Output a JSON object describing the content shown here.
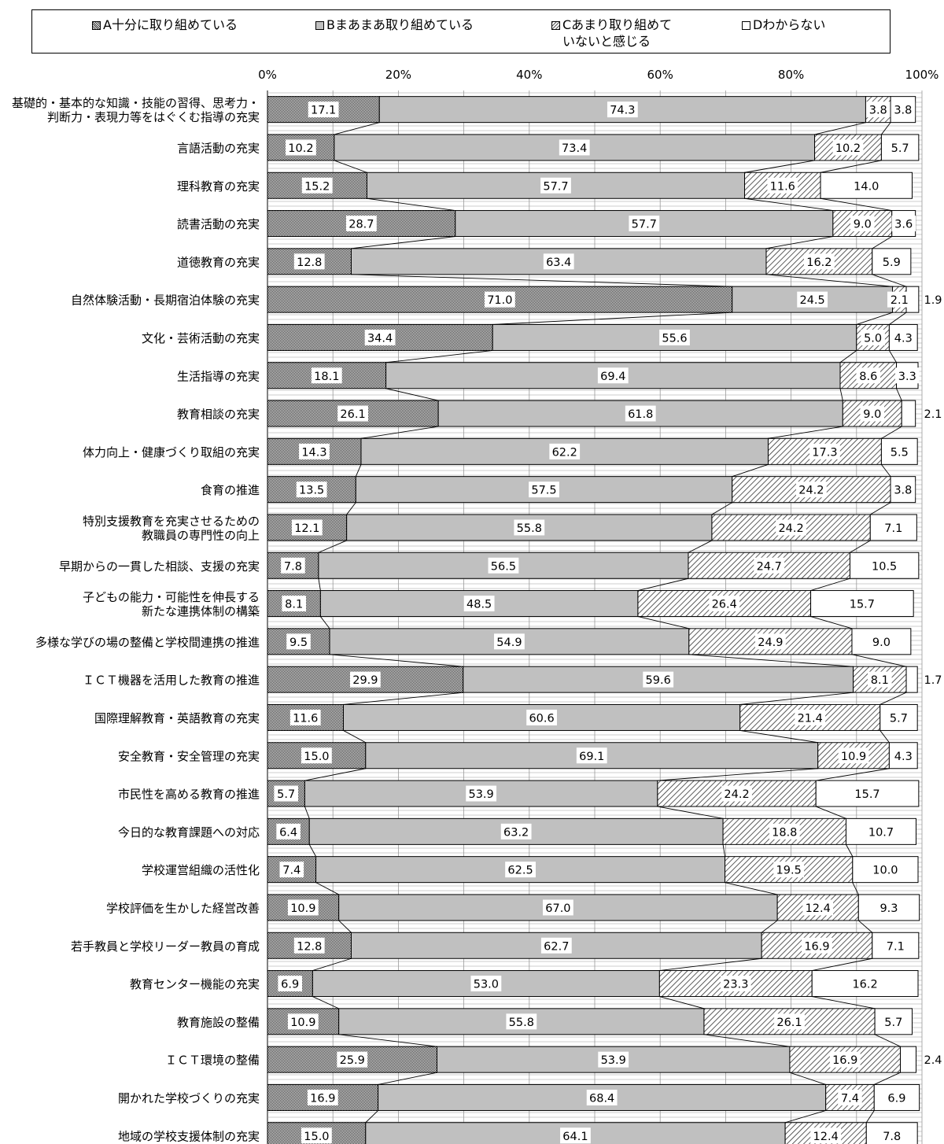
{
  "chart_data": {
    "type": "bar",
    "orientation": "horizontal",
    "stacked": true,
    "percent_axis": true,
    "xlim": [
      0,
      100
    ],
    "x_ticks": [
      "0%",
      "20%",
      "40%",
      "60%",
      "80%",
      "100%"
    ],
    "legend_position": "top",
    "grid": true,
    "series": [
      {
        "name": "A十分に取り組めている",
        "pattern": "dense-checker",
        "color": "#333333"
      },
      {
        "name": "Bまあまあ取り組めている",
        "pattern": "solid",
        "color": "#c0c0c0"
      },
      {
        "name": "Cあまり取り組めて\nいないと感じる",
        "pattern": "diagonal-hatch",
        "color": "#555555"
      },
      {
        "name": "Dわからない",
        "pattern": "none",
        "color": "#ffffff"
      }
    ],
    "categories": [
      "基礎的・基本的な知識・技能の習得、思考力・\n判断力・表現力等をはぐくむ指導の充実",
      "言語活動の充実",
      "理科教育の充実",
      "読書活動の充実",
      "道徳教育の充実",
      "自然体験活動・長期宿泊体験の充実",
      "文化・芸術活動の充実",
      "生活指導の充実",
      "教育相談の充実",
      "体力向上・健康づくり取組の充実",
      "食育の推進",
      "特別支援教育を充実させるための\n教職員の専門性の向上",
      "早期からの一貫した相談、支援の充実",
      "子どもの能力・可能性を伸長する\n新たな連携体制の構築",
      "多様な学びの場の整備と学校間連携の推進",
      "ＩＣＴ機器を活用した教育の推進",
      "国際理解教育・英語教育の充実",
      "安全教育・安全管理の充実",
      "市民性を高める教育の推進",
      "今日的な教育課題への対応",
      "学校運営組織の活性化",
      "学校評価を生かした経営改善",
      "若手教員と学校リーダー教員の育成",
      "教育センター機能の充実",
      "教育施設の整備",
      "ＩＣＴ環境の整備",
      "開かれた学校づくりの充実",
      "地域の学校支援体制の充実"
    ],
    "values": [
      [
        17.1,
        74.3,
        3.8,
        3.8
      ],
      [
        10.2,
        73.4,
        10.2,
        5.7
      ],
      [
        15.2,
        57.7,
        11.6,
        14.0
      ],
      [
        28.7,
        57.7,
        9.0,
        3.6
      ],
      [
        12.8,
        63.4,
        16.2,
        5.9
      ],
      [
        71.0,
        24.5,
        2.1,
        1.9
      ],
      [
        34.4,
        55.6,
        5.0,
        4.3
      ],
      [
        18.1,
        69.4,
        8.6,
        3.3
      ],
      [
        26.1,
        61.8,
        9.0,
        2.1
      ],
      [
        14.3,
        62.2,
        17.3,
        5.5
      ],
      [
        13.5,
        57.5,
        24.2,
        3.8
      ],
      [
        12.1,
        55.8,
        24.2,
        7.1
      ],
      [
        7.8,
        56.5,
        24.7,
        10.5
      ],
      [
        8.1,
        48.5,
        26.4,
        15.7
      ],
      [
        9.5,
        54.9,
        24.9,
        9.0
      ],
      [
        29.9,
        59.6,
        8.1,
        1.7
      ],
      [
        11.6,
        60.6,
        21.4,
        5.7
      ],
      [
        15.0,
        69.1,
        10.9,
        4.3
      ],
      [
        5.7,
        53.9,
        24.2,
        15.7
      ],
      [
        6.4,
        63.2,
        18.8,
        10.7
      ],
      [
        7.4,
        62.5,
        19.5,
        10.0
      ],
      [
        10.9,
        67.0,
        12.4,
        9.3
      ],
      [
        12.8,
        62.7,
        16.9,
        7.1
      ],
      [
        6.9,
        53.0,
        23.3,
        16.2
      ],
      [
        10.9,
        55.8,
        26.1,
        5.7
      ],
      [
        25.9,
        53.9,
        16.9,
        2.4
      ],
      [
        16.9,
        68.4,
        7.4,
        6.9
      ],
      [
        15.0,
        64.1,
        12.4,
        7.8
      ]
    ],
    "value_labels": [
      [
        "17.1",
        "74.3",
        "3.8",
        "3.8"
      ],
      [
        "10.2",
        "73.4",
        "10.2",
        "5.7"
      ],
      [
        "15.2",
        "57.7",
        "11.6",
        "14.0"
      ],
      [
        "28.7",
        "57.7",
        "9.0",
        "3.6"
      ],
      [
        "12.8",
        "63.4",
        "16.2",
        "5.9"
      ],
      [
        "71.0",
        "24.5",
        "2.1",
        "1.9"
      ],
      [
        "34.4",
        "55.6",
        "5.0",
        "4.3"
      ],
      [
        "18.1",
        "69.4",
        "8.6",
        "3.3"
      ],
      [
        "26.1",
        "61.8",
        "9.0",
        "2.1"
      ],
      [
        "14.3",
        "62.2",
        "17.3",
        "5.5"
      ],
      [
        "13.5",
        "57.5",
        "24.2",
        "3.8"
      ],
      [
        "12.1",
        "55.8",
        "24.2",
        "7.1"
      ],
      [
        "7.8",
        "56.5",
        "24.7",
        "10.5"
      ],
      [
        "8.1",
        "48.5",
        "26.4",
        "15.7"
      ],
      [
        "9.5",
        "54.9",
        "24.9",
        "9.0"
      ],
      [
        "29.9",
        "59.6",
        "8.1",
        "1.7"
      ],
      [
        "11.6",
        "60.6",
        "21.4",
        "5.7"
      ],
      [
        "15.0",
        "69.1",
        "10.9",
        "4.3"
      ],
      [
        "5.7",
        "53.9",
        "24.2",
        "15.7"
      ],
      [
        "6.4",
        "63.2",
        "18.8",
        "10.7"
      ],
      [
        "7.4",
        "62.5",
        "19.5",
        "10.0"
      ],
      [
        "10.9",
        "67.0",
        "12.4",
        "9.3"
      ],
      [
        "12.8",
        "62.7",
        "16.9",
        "7.1"
      ],
      [
        "6.9",
        "53.0",
        "23.3",
        "16.2"
      ],
      [
        "10.9",
        "55.8",
        "26.1",
        "5.7"
      ],
      [
        "25.9",
        "53.9",
        "16.9",
        "2.4"
      ],
      [
        "16.9",
        "68.4",
        "7.4",
        "6.9"
      ],
      [
        "15.0",
        "64.1",
        "12.4",
        "7.8"
      ]
    ],
    "outside_labels": [
      5,
      8,
      15,
      25
    ],
    "series_lines": true
  }
}
